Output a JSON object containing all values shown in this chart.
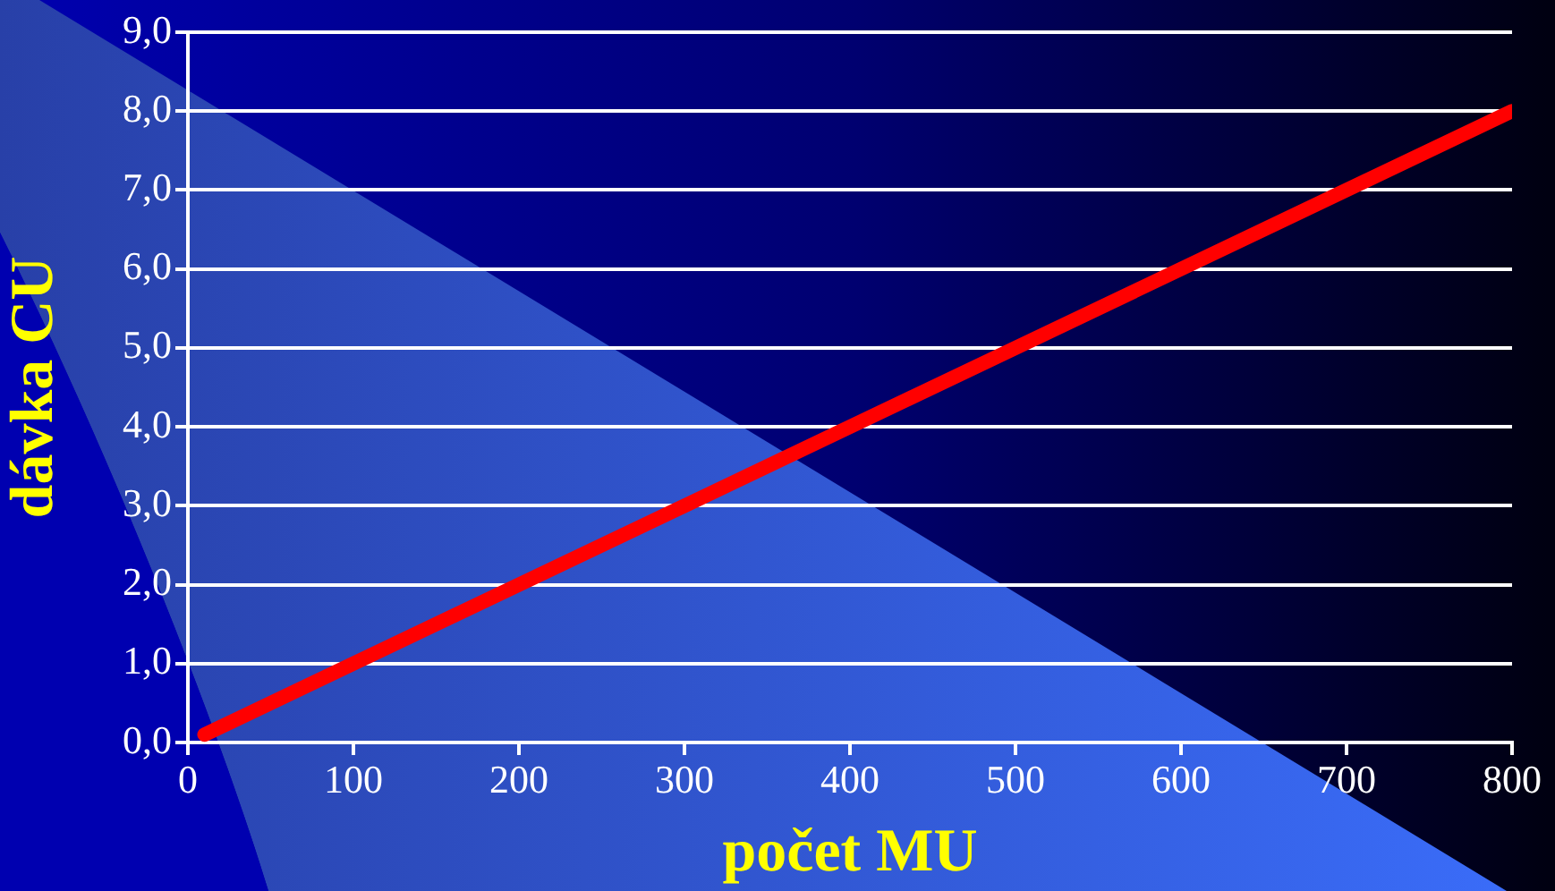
{
  "chart_data": {
    "type": "line",
    "xlabel": "počet MU",
    "ylabel": "dávka CU",
    "series": [
      {
        "color": "#ff0000",
        "x": [
          10,
          800
        ],
        "values": [
          0.1,
          8.0
        ]
      }
    ],
    "xlim": [
      0,
      800
    ],
    "xticks": [
      0,
      100,
      200,
      300,
      400,
      500,
      600,
      700,
      800
    ],
    "ylim": [
      0,
      9
    ],
    "yticks": [
      {
        "value": 0,
        "label": "0,0"
      },
      {
        "value": 1,
        "label": "1,0"
      },
      {
        "value": 2,
        "label": "2,0"
      },
      {
        "value": 3,
        "label": "3,0"
      },
      {
        "value": 4,
        "label": "4,0"
      },
      {
        "value": 5,
        "label": "5,0"
      },
      {
        "value": 6,
        "label": "6,0"
      },
      {
        "value": 7,
        "label": "7,0"
      },
      {
        "value": 8,
        "label": "8,0"
      },
      {
        "value": 9,
        "label": "9,0"
      }
    ],
    "grid": "y",
    "legend": false,
    "marker": "none",
    "line_style": "solid"
  }
}
